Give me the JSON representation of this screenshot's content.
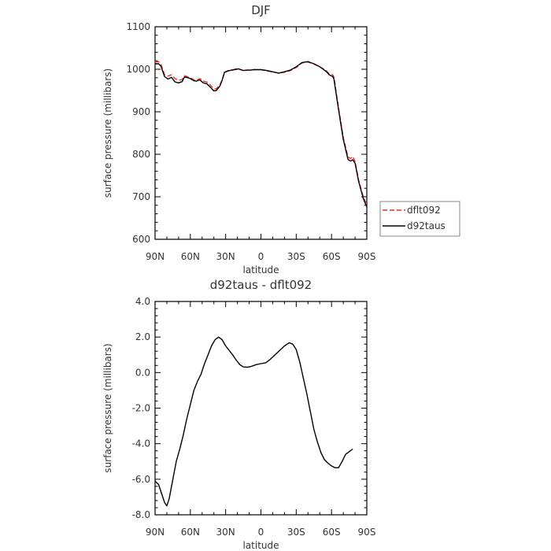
{
  "chart_data": [
    {
      "type": "line",
      "title": "DJF",
      "xlabel": "latitude",
      "ylabel": "surface pressure (millibars)",
      "xlim": [
        -90,
        90
      ],
      "ylim": [
        600,
        1100
      ],
      "x_ticks": [
        -90,
        -60,
        -30,
        0,
        30,
        60,
        90
      ],
      "x_tick_labels": [
        "90N",
        "60N",
        "30N",
        "0",
        "30S",
        "60S",
        "90S"
      ],
      "y_ticks": [
        600,
        700,
        800,
        900,
        1000,
        1100
      ],
      "y_tick_labels": [
        "600",
        "700",
        "800",
        "900",
        "1000",
        "1100"
      ],
      "grid": false,
      "legend_position": "right",
      "series": [
        {
          "name": "dflt092",
          "color": "#e03030",
          "style": "dashed",
          "points": [
            [
              -90,
              1018
            ],
            [
              -87,
              1018
            ],
            [
              -85,
              1012
            ],
            [
              -82,
              987
            ],
            [
              -79,
              984
            ],
            [
              -76,
              987
            ],
            [
              -73,
              978
            ],
            [
              -70,
              974
            ],
            [
              -67,
              976
            ],
            [
              -65,
              985
            ],
            [
              -62,
              982
            ],
            [
              -60,
              980
            ],
            [
              -57,
              975
            ],
            [
              -55,
              974
            ],
            [
              -52,
              978
            ],
            [
              -49,
              972
            ],
            [
              -46,
              970
            ],
            [
              -43,
              963
            ],
            [
              -40,
              954
            ],
            [
              -38,
              954
            ],
            [
              -35,
              963
            ],
            [
              -33,
              975
            ],
            [
              -31,
              992
            ],
            [
              -28,
              997
            ],
            [
              -25,
              997
            ],
            [
              -22,
              999
            ],
            [
              -19,
              1000
            ],
            [
              -17,
              999
            ],
            [
              -15,
              997
            ],
            [
              -12,
              998
            ],
            [
              -9,
              998
            ],
            [
              -6,
              999
            ],
            [
              0,
              999
            ],
            [
              5,
              996
            ],
            [
              10,
              994
            ],
            [
              15,
              991
            ],
            [
              20,
              993
            ],
            [
              25,
              997
            ],
            [
              30,
              1004
            ],
            [
              35,
              1015
            ],
            [
              40,
              1017
            ],
            [
              45,
              1012
            ],
            [
              50,
              1006
            ],
            [
              55,
              998
            ],
            [
              58,
              990
            ],
            [
              61,
              987
            ],
            [
              62,
              982
            ],
            [
              66,
              910
            ],
            [
              70,
              840
            ],
            [
              74,
              794
            ],
            [
              76,
              790
            ],
            [
              78,
              795
            ],
            [
              80,
              783
            ],
            [
              83,
              740
            ],
            [
              87,
              700
            ],
            [
              90,
              681
            ]
          ]
        },
        {
          "name": "d92taus",
          "color": "#000000",
          "style": "solid",
          "points": [
            [
              -90,
              1013
            ],
            [
              -87,
              1013
            ],
            [
              -85,
              1007
            ],
            [
              -82,
              983
            ],
            [
              -79,
              977
            ],
            [
              -76,
              981
            ],
            [
              -73,
              970
            ],
            [
              -70,
              968
            ],
            [
              -67,
              971
            ],
            [
              -65,
              982
            ],
            [
              -62,
              980
            ],
            [
              -60,
              978
            ],
            [
              -57,
              973
            ],
            [
              -55,
              972
            ],
            [
              -52,
              975
            ],
            [
              -49,
              968
            ],
            [
              -46,
              966
            ],
            [
              -43,
              958
            ],
            [
              -40,
              949
            ],
            [
              -38,
              950
            ],
            [
              -35,
              960
            ],
            [
              -33,
              974
            ],
            [
              -31,
              993
            ],
            [
              -28,
              996
            ],
            [
              -25,
              998
            ],
            [
              -22,
              1000
            ],
            [
              -19,
              1001
            ],
            [
              -17,
              999
            ],
            [
              -15,
              997
            ],
            [
              -12,
              998
            ],
            [
              -9,
              998
            ],
            [
              -6,
              999
            ],
            [
              0,
              999
            ],
            [
              5,
              997
            ],
            [
              10,
              994
            ],
            [
              15,
              991
            ],
            [
              20,
              994
            ],
            [
              25,
              998
            ],
            [
              30,
              1006
            ],
            [
              35,
              1016
            ],
            [
              40,
              1018
            ],
            [
              45,
              1013
            ],
            [
              50,
              1006
            ],
            [
              55,
              996
            ],
            [
              58,
              987
            ],
            [
              61,
              983
            ],
            [
              62,
              977
            ],
            [
              66,
              905
            ],
            [
              70,
              835
            ],
            [
              74,
              788
            ],
            [
              76,
              784
            ],
            [
              78,
              787
            ],
            [
              80,
              779
            ],
            [
              83,
              737
            ],
            [
              87,
              696
            ],
            [
              90,
              676
            ]
          ]
        }
      ]
    },
    {
      "type": "line",
      "title": "d92taus - dflt092",
      "xlabel": "latitude",
      "ylabel": "surface pressure (millibars)",
      "xlim": [
        -90,
        90
      ],
      "ylim": [
        -8,
        4
      ],
      "x_ticks": [
        -90,
        -60,
        -30,
        0,
        30,
        60,
        90
      ],
      "x_tick_labels": [
        "90N",
        "60N",
        "30N",
        "0",
        "30S",
        "60S",
        "90S"
      ],
      "y_ticks": [
        -8,
        -6,
        -4,
        -2,
        0,
        2,
        4
      ],
      "y_tick_labels": [
        "-8.0",
        "-6.0",
        "-4.0",
        "-2.0",
        "0.0",
        "2.0",
        "4.0"
      ],
      "grid": false,
      "series": [
        {
          "color": "#000000",
          "style": "solid",
          "points": [
            [
              -90,
              -6.1
            ],
            [
              -87,
              -6.3
            ],
            [
              -85,
              -6.7
            ],
            [
              -82,
              -7.3
            ],
            [
              -80,
              -7.5
            ],
            [
              -78,
              -7.1
            ],
            [
              -76,
              -6.4
            ],
            [
              -74,
              -5.7
            ],
            [
              -72,
              -5.0
            ],
            [
              -69,
              -4.3
            ],
            [
              -66,
              -3.5
            ],
            [
              -63,
              -2.6
            ],
            [
              -60,
              -1.8
            ],
            [
              -57,
              -1.0
            ],
            [
              -54,
              -0.5
            ],
            [
              -51,
              -0.1
            ],
            [
              -48,
              0.5
            ],
            [
              -45,
              1.0
            ],
            [
              -42,
              1.5
            ],
            [
              -39,
              1.85
            ],
            [
              -36,
              2.0
            ],
            [
              -33,
              1.85
            ],
            [
              -30,
              1.5
            ],
            [
              -27,
              1.25
            ],
            [
              -24,
              1.0
            ],
            [
              -21,
              0.7
            ],
            [
              -18,
              0.45
            ],
            [
              -15,
              0.32
            ],
            [
              -12,
              0.3
            ],
            [
              -8,
              0.35
            ],
            [
              -4,
              0.45
            ],
            [
              0,
              0.5
            ],
            [
              4,
              0.55
            ],
            [
              8,
              0.75
            ],
            [
              12,
              1.0
            ],
            [
              16,
              1.25
            ],
            [
              20,
              1.5
            ],
            [
              24,
              1.68
            ],
            [
              27,
              1.6
            ],
            [
              30,
              1.3
            ],
            [
              33,
              0.6
            ],
            [
              36,
              -0.3
            ],
            [
              39,
              -1.2
            ],
            [
              42,
              -2.2
            ],
            [
              45,
              -3.2
            ],
            [
              48,
              -3.9
            ],
            [
              51,
              -4.5
            ],
            [
              54,
              -4.9
            ],
            [
              57,
              -5.1
            ],
            [
              60,
              -5.25
            ],
            [
              63,
              -5.35
            ],
            [
              66,
              -5.35
            ],
            [
              69,
              -5.0
            ],
            [
              72,
              -4.6
            ],
            [
              75,
              -4.45
            ],
            [
              78,
              -4.3
            ]
          ]
        }
      ]
    }
  ]
}
